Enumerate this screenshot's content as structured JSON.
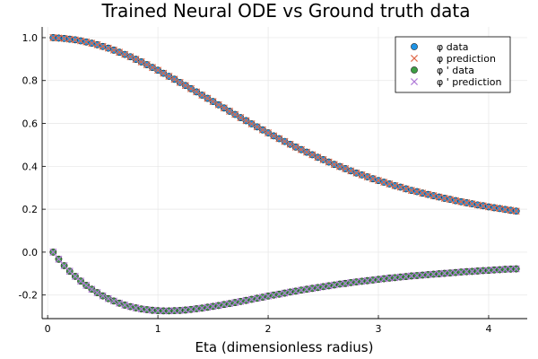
{
  "chart_data": {
    "type": "scatter",
    "title": "Trained Neural ODE vs Ground truth data",
    "xlabel": "Eta (dimensionless radius)",
    "ylabel": "",
    "xlim": [
      -0.05,
      4.35
    ],
    "ylim": [
      -0.31,
      1.05
    ],
    "xticks": [
      0,
      1,
      2,
      3,
      4
    ],
    "xtick_labels": [
      "0",
      "1",
      "2",
      "3",
      "4"
    ],
    "yticks": [
      -0.2,
      0.0,
      0.2,
      0.4,
      0.6,
      0.8,
      1.0
    ],
    "ytick_labels": [
      "-0.2",
      "0.0",
      "0.2",
      "0.4",
      "0.6",
      "0.8",
      "1.0"
    ],
    "grid": true,
    "legend_position": "top-right",
    "x": [
      0.05,
      0.1,
      0.15,
      0.2,
      0.25,
      0.3,
      0.35,
      0.4,
      0.45,
      0.5,
      0.55,
      0.6,
      0.65,
      0.7,
      0.75,
      0.8,
      0.85,
      0.9,
      0.95,
      1.0,
      1.05,
      1.1,
      1.15,
      1.2,
      1.25,
      1.3,
      1.35,
      1.4,
      1.45,
      1.5,
      1.55,
      1.6,
      1.65,
      1.7,
      1.75,
      1.8,
      1.85,
      1.9,
      1.95,
      2.0,
      2.05,
      2.1,
      2.15,
      2.2,
      2.25,
      2.3,
      2.35,
      2.4,
      2.45,
      2.5,
      2.55,
      2.6,
      2.65,
      2.7,
      2.75,
      2.8,
      2.85,
      2.9,
      2.95,
      3.0,
      3.05,
      3.1,
      3.15,
      3.2,
      3.25,
      3.3,
      3.35,
      3.4,
      3.45,
      3.5,
      3.55,
      3.6,
      3.65,
      3.7,
      3.75,
      3.8,
      3.85,
      3.9,
      3.95,
      4.0,
      4.05,
      4.1,
      4.15,
      4.2,
      4.25
    ],
    "series": [
      {
        "name": "φ data",
        "marker": "circle",
        "color": "#1f94e6",
        "values": [
          1.0,
          0.998,
          0.996,
          0.993,
          0.99,
          0.985,
          0.98,
          0.974,
          0.967,
          0.959,
          0.951,
          0.942,
          0.932,
          0.922,
          0.911,
          0.899,
          0.887,
          0.874,
          0.861,
          0.848,
          0.834,
          0.82,
          0.806,
          0.791,
          0.777,
          0.762,
          0.747,
          0.732,
          0.717,
          0.702,
          0.687,
          0.672,
          0.657,
          0.642,
          0.627,
          0.613,
          0.598,
          0.584,
          0.57,
          0.556,
          0.542,
          0.529,
          0.516,
          0.503,
          0.49,
          0.478,
          0.466,
          0.454,
          0.442,
          0.431,
          0.42,
          0.409,
          0.399,
          0.389,
          0.379,
          0.369,
          0.36,
          0.351,
          0.342,
          0.334,
          0.326,
          0.318,
          0.31,
          0.303,
          0.295,
          0.288,
          0.282,
          0.275,
          0.269,
          0.263,
          0.257,
          0.251,
          0.246,
          0.24,
          0.235,
          0.23,
          0.225,
          0.22,
          0.216,
          0.211,
          0.207,
          0.203,
          0.199,
          0.195,
          0.191
        ]
      },
      {
        "name": "φ prediction",
        "marker": "x",
        "color": "#e0694a",
        "values": [
          1.0,
          0.998,
          0.996,
          0.993,
          0.99,
          0.985,
          0.98,
          0.974,
          0.967,
          0.959,
          0.951,
          0.942,
          0.932,
          0.922,
          0.911,
          0.899,
          0.887,
          0.874,
          0.861,
          0.848,
          0.834,
          0.82,
          0.806,
          0.791,
          0.777,
          0.762,
          0.747,
          0.732,
          0.717,
          0.702,
          0.687,
          0.672,
          0.657,
          0.642,
          0.627,
          0.613,
          0.598,
          0.584,
          0.57,
          0.556,
          0.542,
          0.529,
          0.516,
          0.503,
          0.49,
          0.478,
          0.466,
          0.454,
          0.442,
          0.431,
          0.42,
          0.409,
          0.399,
          0.389,
          0.379,
          0.369,
          0.36,
          0.351,
          0.342,
          0.334,
          0.326,
          0.318,
          0.31,
          0.303,
          0.295,
          0.288,
          0.282,
          0.275,
          0.269,
          0.263,
          0.257,
          0.251,
          0.246,
          0.24,
          0.235,
          0.23,
          0.225,
          0.22,
          0.216,
          0.211,
          0.207,
          0.203,
          0.199,
          0.195,
          0.191
        ]
      },
      {
        "name": "φ ' data",
        "marker": "circle",
        "color": "#3d9e44",
        "values": [
          0.0,
          -0.033,
          -0.063,
          -0.089,
          -0.113,
          -0.135,
          -0.155,
          -0.173,
          -0.189,
          -0.204,
          -0.217,
          -0.228,
          -0.238,
          -0.247,
          -0.254,
          -0.26,
          -0.265,
          -0.268,
          -0.271,
          -0.273,
          -0.274,
          -0.274,
          -0.273,
          -0.272,
          -0.27,
          -0.267,
          -0.264,
          -0.261,
          -0.257,
          -0.253,
          -0.249,
          -0.244,
          -0.24,
          -0.235,
          -0.23,
          -0.225,
          -0.22,
          -0.215,
          -0.21,
          -0.205,
          -0.2,
          -0.196,
          -0.191,
          -0.186,
          -0.182,
          -0.177,
          -0.173,
          -0.169,
          -0.165,
          -0.161,
          -0.157,
          -0.153,
          -0.149,
          -0.146,
          -0.142,
          -0.139,
          -0.136,
          -0.133,
          -0.13,
          -0.127,
          -0.124,
          -0.121,
          -0.119,
          -0.116,
          -0.114,
          -0.111,
          -0.109,
          -0.107,
          -0.105,
          -0.103,
          -0.101,
          -0.099,
          -0.097,
          -0.095,
          -0.093,
          -0.091,
          -0.09,
          -0.088,
          -0.086,
          -0.085,
          -0.083,
          -0.082,
          -0.08,
          -0.079,
          -0.078
        ]
      },
      {
        "name": "φ ' prediction",
        "marker": "x",
        "color": "#b07ad8",
        "values": [
          0.0,
          -0.033,
          -0.063,
          -0.089,
          -0.113,
          -0.135,
          -0.155,
          -0.173,
          -0.189,
          -0.204,
          -0.217,
          -0.228,
          -0.238,
          -0.247,
          -0.254,
          -0.26,
          -0.265,
          -0.268,
          -0.271,
          -0.273,
          -0.274,
          -0.274,
          -0.273,
          -0.272,
          -0.27,
          -0.267,
          -0.264,
          -0.261,
          -0.257,
          -0.253,
          -0.249,
          -0.244,
          -0.24,
          -0.235,
          -0.23,
          -0.225,
          -0.22,
          -0.215,
          -0.21,
          -0.205,
          -0.2,
          -0.196,
          -0.191,
          -0.186,
          -0.182,
          -0.177,
          -0.173,
          -0.169,
          -0.165,
          -0.161,
          -0.157,
          -0.153,
          -0.149,
          -0.146,
          -0.142,
          -0.139,
          -0.136,
          -0.133,
          -0.13,
          -0.127,
          -0.124,
          -0.121,
          -0.119,
          -0.116,
          -0.114,
          -0.111,
          -0.109,
          -0.107,
          -0.105,
          -0.103,
          -0.101,
          -0.099,
          -0.097,
          -0.095,
          -0.093,
          -0.091,
          -0.09,
          -0.088,
          -0.086,
          -0.085,
          -0.083,
          -0.082,
          -0.08,
          -0.079,
          -0.078
        ]
      }
    ]
  }
}
